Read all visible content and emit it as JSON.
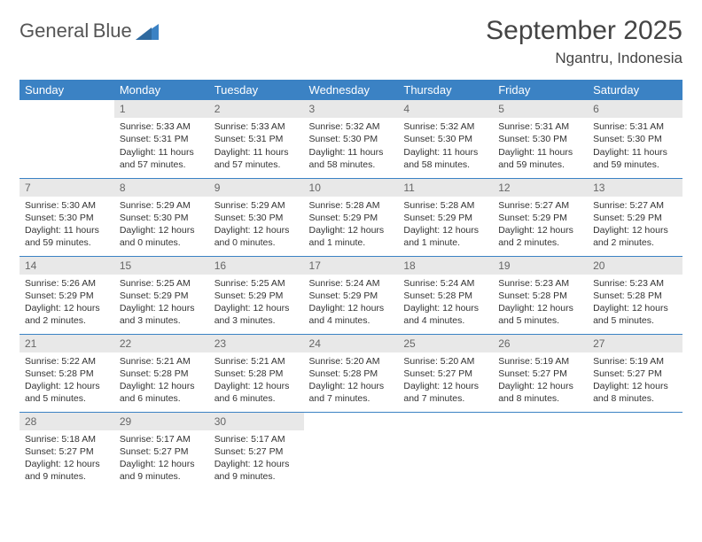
{
  "logo": {
    "word1": "General",
    "word2": "Blue"
  },
  "header": {
    "title": "September 2025",
    "location": "Ngantru, Indonesia"
  },
  "colors": {
    "header_bg": "#3b82c4",
    "header_text": "#ffffff",
    "daynum_bg": "#e8e8e8",
    "rule": "#3b82c4",
    "text": "#333333"
  },
  "daynames": [
    "Sunday",
    "Monday",
    "Tuesday",
    "Wednesday",
    "Thursday",
    "Friday",
    "Saturday"
  ],
  "calendar": {
    "start_offset": 1,
    "days": [
      {
        "n": 1,
        "sunrise": "5:33 AM",
        "sunset": "5:31 PM",
        "daylight": "11 hours and 57 minutes."
      },
      {
        "n": 2,
        "sunrise": "5:33 AM",
        "sunset": "5:31 PM",
        "daylight": "11 hours and 57 minutes."
      },
      {
        "n": 3,
        "sunrise": "5:32 AM",
        "sunset": "5:30 PM",
        "daylight": "11 hours and 58 minutes."
      },
      {
        "n": 4,
        "sunrise": "5:32 AM",
        "sunset": "5:30 PM",
        "daylight": "11 hours and 58 minutes."
      },
      {
        "n": 5,
        "sunrise": "5:31 AM",
        "sunset": "5:30 PM",
        "daylight": "11 hours and 59 minutes."
      },
      {
        "n": 6,
        "sunrise": "5:31 AM",
        "sunset": "5:30 PM",
        "daylight": "11 hours and 59 minutes."
      },
      {
        "n": 7,
        "sunrise": "5:30 AM",
        "sunset": "5:30 PM",
        "daylight": "11 hours and 59 minutes."
      },
      {
        "n": 8,
        "sunrise": "5:29 AM",
        "sunset": "5:30 PM",
        "daylight": "12 hours and 0 minutes."
      },
      {
        "n": 9,
        "sunrise": "5:29 AM",
        "sunset": "5:30 PM",
        "daylight": "12 hours and 0 minutes."
      },
      {
        "n": 10,
        "sunrise": "5:28 AM",
        "sunset": "5:29 PM",
        "daylight": "12 hours and 1 minute."
      },
      {
        "n": 11,
        "sunrise": "5:28 AM",
        "sunset": "5:29 PM",
        "daylight": "12 hours and 1 minute."
      },
      {
        "n": 12,
        "sunrise": "5:27 AM",
        "sunset": "5:29 PM",
        "daylight": "12 hours and 2 minutes."
      },
      {
        "n": 13,
        "sunrise": "5:27 AM",
        "sunset": "5:29 PM",
        "daylight": "12 hours and 2 minutes."
      },
      {
        "n": 14,
        "sunrise": "5:26 AM",
        "sunset": "5:29 PM",
        "daylight": "12 hours and 2 minutes."
      },
      {
        "n": 15,
        "sunrise": "5:25 AM",
        "sunset": "5:29 PM",
        "daylight": "12 hours and 3 minutes."
      },
      {
        "n": 16,
        "sunrise": "5:25 AM",
        "sunset": "5:29 PM",
        "daylight": "12 hours and 3 minutes."
      },
      {
        "n": 17,
        "sunrise": "5:24 AM",
        "sunset": "5:29 PM",
        "daylight": "12 hours and 4 minutes."
      },
      {
        "n": 18,
        "sunrise": "5:24 AM",
        "sunset": "5:28 PM",
        "daylight": "12 hours and 4 minutes."
      },
      {
        "n": 19,
        "sunrise": "5:23 AM",
        "sunset": "5:28 PM",
        "daylight": "12 hours and 5 minutes."
      },
      {
        "n": 20,
        "sunrise": "5:23 AM",
        "sunset": "5:28 PM",
        "daylight": "12 hours and 5 minutes."
      },
      {
        "n": 21,
        "sunrise": "5:22 AM",
        "sunset": "5:28 PM",
        "daylight": "12 hours and 5 minutes."
      },
      {
        "n": 22,
        "sunrise": "5:21 AM",
        "sunset": "5:28 PM",
        "daylight": "12 hours and 6 minutes."
      },
      {
        "n": 23,
        "sunrise": "5:21 AM",
        "sunset": "5:28 PM",
        "daylight": "12 hours and 6 minutes."
      },
      {
        "n": 24,
        "sunrise": "5:20 AM",
        "sunset": "5:28 PM",
        "daylight": "12 hours and 7 minutes."
      },
      {
        "n": 25,
        "sunrise": "5:20 AM",
        "sunset": "5:27 PM",
        "daylight": "12 hours and 7 minutes."
      },
      {
        "n": 26,
        "sunrise": "5:19 AM",
        "sunset": "5:27 PM",
        "daylight": "12 hours and 8 minutes."
      },
      {
        "n": 27,
        "sunrise": "5:19 AM",
        "sunset": "5:27 PM",
        "daylight": "12 hours and 8 minutes."
      },
      {
        "n": 28,
        "sunrise": "5:18 AM",
        "sunset": "5:27 PM",
        "daylight": "12 hours and 9 minutes."
      },
      {
        "n": 29,
        "sunrise": "5:17 AM",
        "sunset": "5:27 PM",
        "daylight": "12 hours and 9 minutes."
      },
      {
        "n": 30,
        "sunrise": "5:17 AM",
        "sunset": "5:27 PM",
        "daylight": "12 hours and 9 minutes."
      }
    ]
  },
  "labels": {
    "sunrise": "Sunrise:",
    "sunset": "Sunset:",
    "daylight": "Daylight:"
  }
}
